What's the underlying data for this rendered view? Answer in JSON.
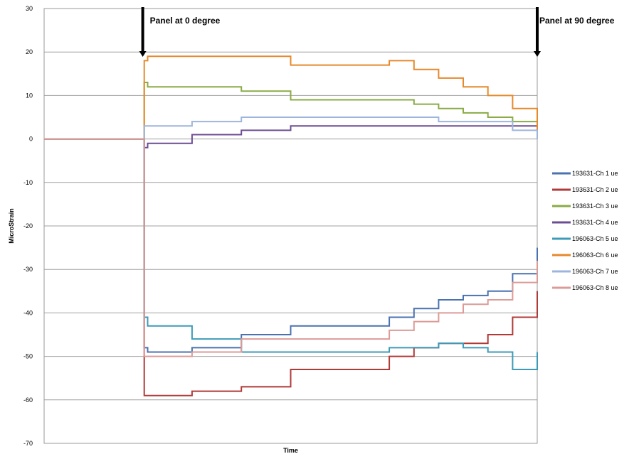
{
  "chart_data": {
    "type": "line",
    "title": "",
    "xlabel": "Time",
    "ylabel": "MicroStrain",
    "ylim": [
      -70,
      30
    ],
    "yticks": [
      30,
      20,
      10,
      0,
      -10,
      -20,
      -30,
      -40,
      -50,
      -60,
      -70
    ],
    "xlim": [
      0,
      100
    ],
    "grid": "horizontal",
    "legend_position": "right",
    "annotations": [
      {
        "text": "Panel  at 0 degree",
        "x": 20
      },
      {
        "text": "Panel  at 90 degree",
        "x": 100
      }
    ],
    "series": [
      {
        "name": "193631-Ch 1 ue",
        "color": "#4a72b0",
        "x": [
          0,
          20,
          20.3,
          21,
          30,
          40,
          50,
          60,
          70,
          75,
          80,
          85,
          90,
          95,
          100
        ],
        "y": [
          0,
          0,
          -48,
          -49,
          -48,
          -45,
          -43,
          -43,
          -41,
          -39,
          -37,
          -36,
          -35,
          -31,
          -25
        ]
      },
      {
        "name": "193631-Ch 2 ue",
        "color": "#b03a38",
        "x": [
          0,
          20,
          20.3,
          21,
          30,
          40,
          50,
          60,
          70,
          75,
          80,
          85,
          90,
          95,
          100
        ],
        "y": [
          0,
          0,
          -59,
          -59,
          -58,
          -57,
          -53,
          -53,
          -50,
          -48,
          -47,
          -47,
          -45,
          -41,
          -35
        ]
      },
      {
        "name": "193631-Ch 3 ue",
        "color": "#8aab46",
        "x": [
          0,
          20,
          20.3,
          21,
          30,
          40,
          50,
          60,
          70,
          75,
          80,
          85,
          90,
          95,
          100
        ],
        "y": [
          0,
          0,
          13,
          12,
          12,
          11,
          9,
          9,
          9,
          8,
          7,
          6,
          5,
          4,
          3
        ]
      },
      {
        "name": "193631-Ch 4 ue",
        "color": "#6c4d94",
        "x": [
          0,
          20,
          20.3,
          21,
          30,
          40,
          50,
          60,
          70,
          75,
          80,
          85,
          90,
          95,
          100
        ],
        "y": [
          0,
          0,
          -2,
          -1,
          1,
          2,
          3,
          3,
          3,
          3,
          3,
          3,
          3,
          3,
          2
        ]
      },
      {
        "name": "196063-Ch 5 ue",
        "color": "#3d9bb8",
        "x": [
          0,
          20,
          20.3,
          21,
          30,
          40,
          50,
          60,
          70,
          75,
          80,
          85,
          90,
          95,
          100
        ],
        "y": [
          0,
          0,
          -41,
          -43,
          -46,
          -49,
          -49,
          -49,
          -48,
          -48,
          -47,
          -48,
          -49,
          -53,
          -49
        ]
      },
      {
        "name": "196063-Ch 6 ue",
        "color": "#e58a2c",
        "x": [
          0,
          20,
          20.3,
          21,
          30,
          40,
          50,
          60,
          70,
          75,
          80,
          85,
          90,
          95,
          100
        ],
        "y": [
          0,
          0,
          18,
          19,
          19,
          19,
          17,
          17,
          18,
          16,
          14,
          12,
          10,
          7,
          2
        ]
      },
      {
        "name": "196063-Ch 7 ue",
        "color": "#9db5dc",
        "x": [
          0,
          20,
          20.3,
          21,
          30,
          40,
          50,
          60,
          70,
          75,
          80,
          85,
          90,
          95,
          100
        ],
        "y": [
          0,
          0,
          3,
          3,
          4,
          5,
          5,
          5,
          5,
          5,
          4,
          4,
          4,
          2,
          0
        ]
      },
      {
        "name": "196063-Ch 8 ue",
        "color": "#dc9b97",
        "x": [
          0,
          20,
          20.3,
          21,
          30,
          40,
          50,
          60,
          70,
          75,
          80,
          85,
          90,
          95,
          100
        ],
        "y": [
          0,
          0,
          -50,
          -50,
          -49,
          -46,
          -46,
          -46,
          -44,
          -42,
          -40,
          -38,
          -37,
          -33,
          -28
        ]
      }
    ]
  }
}
